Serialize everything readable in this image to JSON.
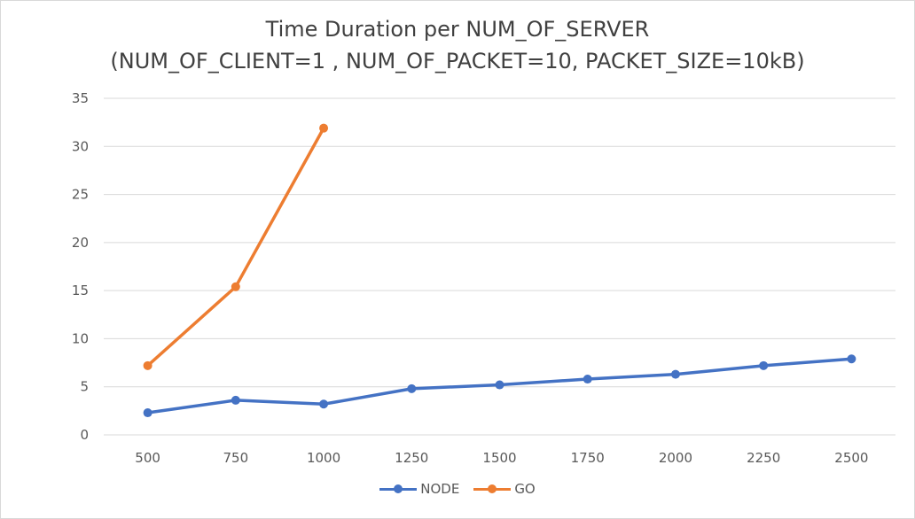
{
  "chart_data": {
    "type": "line",
    "title": "Time Duration per NUM_OF_SERVER",
    "subtitle": "(NUM_OF_CLIENT=1 ,  NUM_OF_PACKET=10,  PACKET_SIZE=10kB)",
    "xlabel": "",
    "ylabel": "",
    "categories": [
      "500",
      "750",
      "1000",
      "1250",
      "1500",
      "1750",
      "2000",
      "2250",
      "2500"
    ],
    "ylim": [
      0,
      35
    ],
    "yticks": [
      0,
      5,
      10,
      15,
      20,
      25,
      30,
      35
    ],
    "grid": true,
    "legend_position": "bottom",
    "series": [
      {
        "name": "NODE",
        "color": "#4472C4",
        "values": [
          2.3,
          3.6,
          3.2,
          4.8,
          5.2,
          5.8,
          6.3,
          7.2,
          7.9
        ]
      },
      {
        "name": "GO",
        "color": "#ED7D31",
        "values": [
          7.2,
          15.4,
          31.9,
          null,
          null,
          null,
          null,
          null,
          null
        ]
      }
    ]
  }
}
